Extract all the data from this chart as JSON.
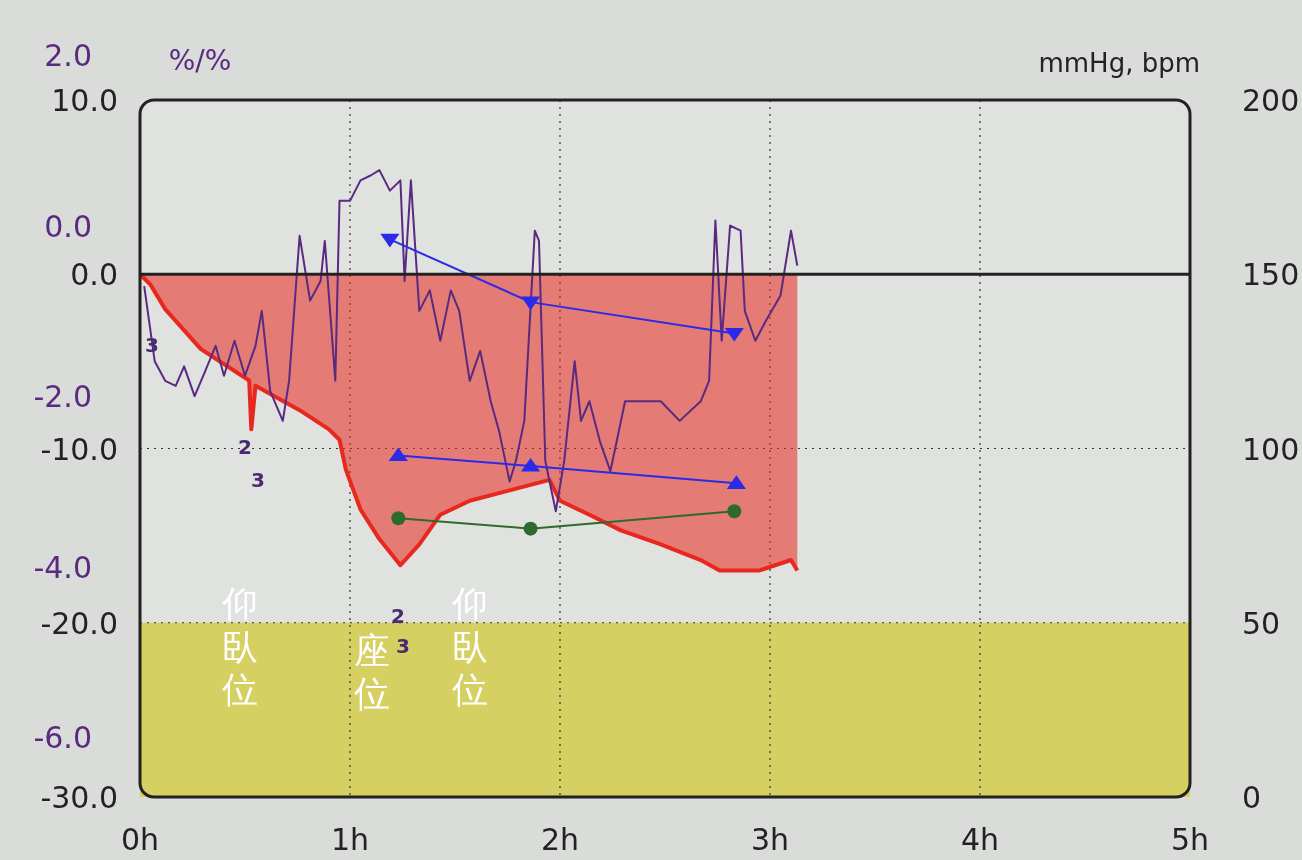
{
  "chart_data": {
    "type": "line",
    "ylabel": "%/%",
    "y2label": "mmHg, bpm",
    "xlim": [
      0,
      5
    ],
    "xticks": [
      {
        "value": 0,
        "label": "0h"
      },
      {
        "value": 1,
        "label": "1h"
      },
      {
        "value": 2,
        "label": "2h"
      },
      {
        "value": 3,
        "label": "3h"
      },
      {
        "value": 4,
        "label": "4h"
      },
      {
        "value": 5,
        "label": "5h"
      }
    ],
    "ylim": [
      -30,
      10
    ],
    "yticks": [
      {
        "value": 10,
        "label": "10.0"
      },
      {
        "value": 0,
        "label": "0.0"
      },
      {
        "value": -10,
        "label": "-10.0"
      },
      {
        "value": -20,
        "label": "-20.0"
      },
      {
        "value": -30,
        "label": "-30.0"
      }
    ],
    "y2lim": [
      0,
      200
    ],
    "y2ticks": [
      0,
      50,
      100,
      150,
      200
    ],
    "y3lim": [
      -6.7,
      2.0
    ],
    "y3ticks": [
      {
        "value": 2,
        "label": "2.0"
      },
      {
        "value": 0,
        "label": "0.0"
      },
      {
        "value": -2,
        "label": "-2.0"
      },
      {
        "value": -4,
        "label": "-4.0"
      },
      {
        "value": -6,
        "label": "-6.0"
      }
    ],
    "grid": true,
    "bands": [
      {
        "axis": "y",
        "from": -30,
        "to": -20,
        "color": "#d6cf62"
      }
    ],
    "ref_lines": [
      {
        "axis": "y",
        "value": 0,
        "color": "#222222"
      }
    ],
    "series": [
      {
        "type": "area",
        "color": "#e8281e",
        "x": [
          0,
          0.05,
          0.12,
          0.29,
          0.52,
          0.53,
          0.55,
          0.67,
          0.76,
          0.9,
          0.95,
          0.98,
          1.05,
          1.14,
          1.24,
          1.33,
          1.43,
          1.57,
          1.76,
          1.95,
          2.0,
          2.14,
          2.29,
          2.48,
          2.67,
          2.76,
          2.95,
          3.1,
          3.13
        ],
        "values": [
          0,
          -0.6,
          -2.0,
          -4.3,
          -6.1,
          -8.9,
          -6.4,
          -7.2,
          -7.8,
          -8.9,
          -9.5,
          -11.2,
          -13.5,
          -15.2,
          -16.7,
          -15.5,
          -13.8,
          -13.0,
          -12.4,
          -11.8,
          -13.0,
          -13.8,
          -14.7,
          -15.5,
          -16.4,
          -17.0,
          -17.0,
          -16.4,
          -17.0
        ]
      },
      {
        "axis": "y3",
        "color": "#5a2a80",
        "x": [
          0.02,
          0.07,
          0.12,
          0.17,
          0.21,
          0.26,
          0.31,
          0.36,
          0.4,
          0.45,
          0.5,
          0.55,
          0.58,
          0.62,
          0.68,
          0.71,
          0.76,
          0.81,
          0.86,
          0.88,
          0.93,
          0.95,
          1.0,
          1.05,
          1.1,
          1.14,
          1.19,
          1.24,
          1.26,
          1.29,
          1.33,
          1.38,
          1.43,
          1.48,
          1.52,
          1.57,
          1.62,
          1.67,
          1.71,
          1.76,
          1.79,
          1.83,
          1.88,
          1.9,
          1.93,
          1.98,
          2.02,
          2.07,
          2.1,
          2.14,
          2.19,
          2.24,
          2.31,
          2.38,
          2.48,
          2.57,
          2.67,
          2.71,
          2.74,
          2.77,
          2.81,
          2.86,
          2.88,
          2.93,
          2.98,
          3.05,
          3.1,
          3.13
        ],
        "values": [
          -0.71,
          -1.59,
          -1.82,
          -1.88,
          -1.65,
          -2.0,
          -1.71,
          -1.41,
          -1.76,
          -1.35,
          -1.76,
          -1.41,
          -1.0,
          -1.94,
          -2.29,
          -1.82,
          -0.12,
          -0.88,
          -0.65,
          -0.18,
          -1.82,
          0.29,
          0.29,
          0.53,
          0.59,
          0.65,
          0.41,
          0.53,
          -0.65,
          0.53,
          -1.0,
          -0.76,
          -1.35,
          -0.76,
          -1.0,
          -1.82,
          -1.47,
          -2.06,
          -2.41,
          -3.0,
          -2.76,
          -2.29,
          -0.06,
          -0.18,
          -2.76,
          -3.35,
          -2.76,
          -1.59,
          -2.29,
          -2.06,
          -2.53,
          -2.88,
          -2.06,
          -2.06,
          -2.06,
          -2.29,
          -2.06,
          -1.82,
          0.06,
          -1.35,
          0.0,
          -0.06,
          -1.0,
          -1.35,
          -1.12,
          -0.82,
          -0.06,
          -0.47
        ]
      },
      {
        "axis": "y2",
        "color": "#2a2ae8",
        "marker": "triangle-down",
        "x": [
          1.19,
          1.86,
          2.83
        ],
        "values": [
          160,
          142,
          133
        ]
      },
      {
        "axis": "y2",
        "color": "#2a2ae8",
        "marker": "triangle",
        "x": [
          1.23,
          1.86,
          2.84
        ],
        "values": [
          98,
          95,
          90
        ]
      },
      {
        "axis": "y2",
        "color": "#2e6a2e",
        "marker": "circle",
        "x": [
          1.23,
          1.86,
          2.83
        ],
        "values": [
          80,
          77,
          82
        ]
      }
    ],
    "annotations": [
      "3",
      "2",
      "3",
      "2",
      "3",
      "仰臥位",
      "座位",
      "仰臥位"
    ]
  }
}
